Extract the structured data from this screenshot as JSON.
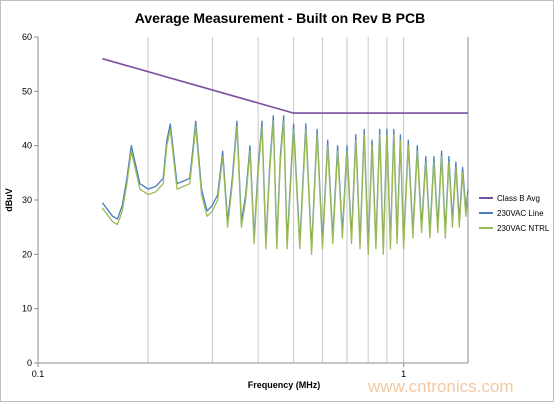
{
  "chart_data": {
    "type": "line",
    "title": "Average Measurement - Built on Rev B PCB",
    "xlabel": "Frequency (MHz)",
    "ylabel": "dBuV",
    "xscale": "log",
    "xlim": [
      0.1,
      1.5
    ],
    "ylim": [
      0,
      60
    ],
    "x_tick_labels": [
      "0.1",
      "1"
    ],
    "x_tick_values": [
      0.1,
      1
    ],
    "y_ticks": [
      0,
      10,
      20,
      30,
      40,
      50,
      60
    ],
    "grid": "vertical major and minor",
    "legend_position": "right",
    "series": [
      {
        "name": "Class B Avg",
        "color": "#7a4fa0",
        "x": [
          0.15,
          0.5,
          1.5
        ],
        "y": [
          56,
          46,
          46
        ]
      },
      {
        "name": "230VAC Line",
        "color": "#4a7ebb",
        "x": [
          0.15,
          0.16,
          0.165,
          0.17,
          0.175,
          0.18,
          0.19,
          0.2,
          0.21,
          0.22,
          0.225,
          0.23,
          0.24,
          0.25,
          0.26,
          0.265,
          0.27,
          0.28,
          0.29,
          0.3,
          0.31,
          0.32,
          0.33,
          0.34,
          0.35,
          0.36,
          0.37,
          0.38,
          0.39,
          0.4,
          0.41,
          0.42,
          0.43,
          0.44,
          0.45,
          0.46,
          0.47,
          0.48,
          0.5,
          0.52,
          0.54,
          0.56,
          0.58,
          0.6,
          0.62,
          0.64,
          0.66,
          0.68,
          0.7,
          0.72,
          0.74,
          0.76,
          0.78,
          0.8,
          0.82,
          0.84,
          0.86,
          0.88,
          0.9,
          0.92,
          0.94,
          0.96,
          0.98,
          1.0,
          1.03,
          1.06,
          1.09,
          1.12,
          1.15,
          1.18,
          1.21,
          1.24,
          1.27,
          1.3,
          1.33,
          1.36,
          1.39,
          1.42,
          1.45,
          1.48,
          1.5
        ],
        "y": [
          29.5,
          27,
          26.5,
          29,
          34,
          40,
          33,
          32,
          32.5,
          34,
          41,
          44,
          33,
          33.5,
          34,
          39,
          44.5,
          32,
          28,
          29,
          31,
          39,
          26,
          34,
          44.5,
          26,
          31,
          40,
          23,
          36,
          44.5,
          22,
          36,
          45.5,
          22,
          38,
          45.5,
          22,
          44,
          22,
          44,
          21,
          43,
          22,
          41,
          23,
          40,
          24,
          40,
          23,
          42,
          22,
          43,
          21,
          41,
          22,
          43,
          21,
          43,
          22,
          43,
          23,
          42,
          22,
          41,
          24,
          40,
          25,
          38,
          24,
          38,
          25,
          39,
          24,
          38,
          26,
          37,
          26,
          36,
          28,
          32
        ]
      },
      {
        "name": "230VAC NTRL",
        "color": "#9bbb59",
        "x": [
          0.15,
          0.16,
          0.165,
          0.17,
          0.175,
          0.18,
          0.19,
          0.2,
          0.21,
          0.22,
          0.225,
          0.23,
          0.24,
          0.25,
          0.26,
          0.265,
          0.27,
          0.28,
          0.29,
          0.3,
          0.31,
          0.32,
          0.33,
          0.34,
          0.35,
          0.36,
          0.37,
          0.38,
          0.39,
          0.4,
          0.41,
          0.42,
          0.43,
          0.44,
          0.45,
          0.46,
          0.47,
          0.48,
          0.5,
          0.52,
          0.54,
          0.56,
          0.58,
          0.6,
          0.62,
          0.64,
          0.66,
          0.68,
          0.7,
          0.72,
          0.74,
          0.76,
          0.78,
          0.8,
          0.82,
          0.84,
          0.86,
          0.88,
          0.9,
          0.92,
          0.94,
          0.96,
          0.98,
          1.0,
          1.03,
          1.06,
          1.09,
          1.12,
          1.15,
          1.18,
          1.21,
          1.24,
          1.27,
          1.3,
          1.33,
          1.36,
          1.39,
          1.42,
          1.45,
          1.48,
          1.5
        ],
        "y": [
          28.5,
          26,
          25.5,
          28,
          33,
          39,
          32,
          31,
          31.5,
          33,
          40,
          43,
          32,
          32.5,
          33,
          38,
          43.5,
          31,
          27,
          28,
          30,
          38,
          25,
          33,
          43.5,
          25,
          30,
          39,
          22,
          35,
          43.5,
          21,
          35,
          44.5,
          21,
          37,
          44.5,
          21,
          43,
          21,
          43,
          20,
          42,
          21,
          40,
          22,
          39,
          23,
          39,
          22,
          41,
          21,
          42,
          20,
          40,
          21,
          42,
          20,
          42,
          21,
          42,
          22,
          41,
          21,
          40,
          23,
          39,
          24,
          37,
          23,
          37,
          24,
          38,
          23,
          37,
          25,
          36,
          25,
          35,
          27,
          31
        ]
      }
    ]
  },
  "watermark": "www.cntronics.com"
}
